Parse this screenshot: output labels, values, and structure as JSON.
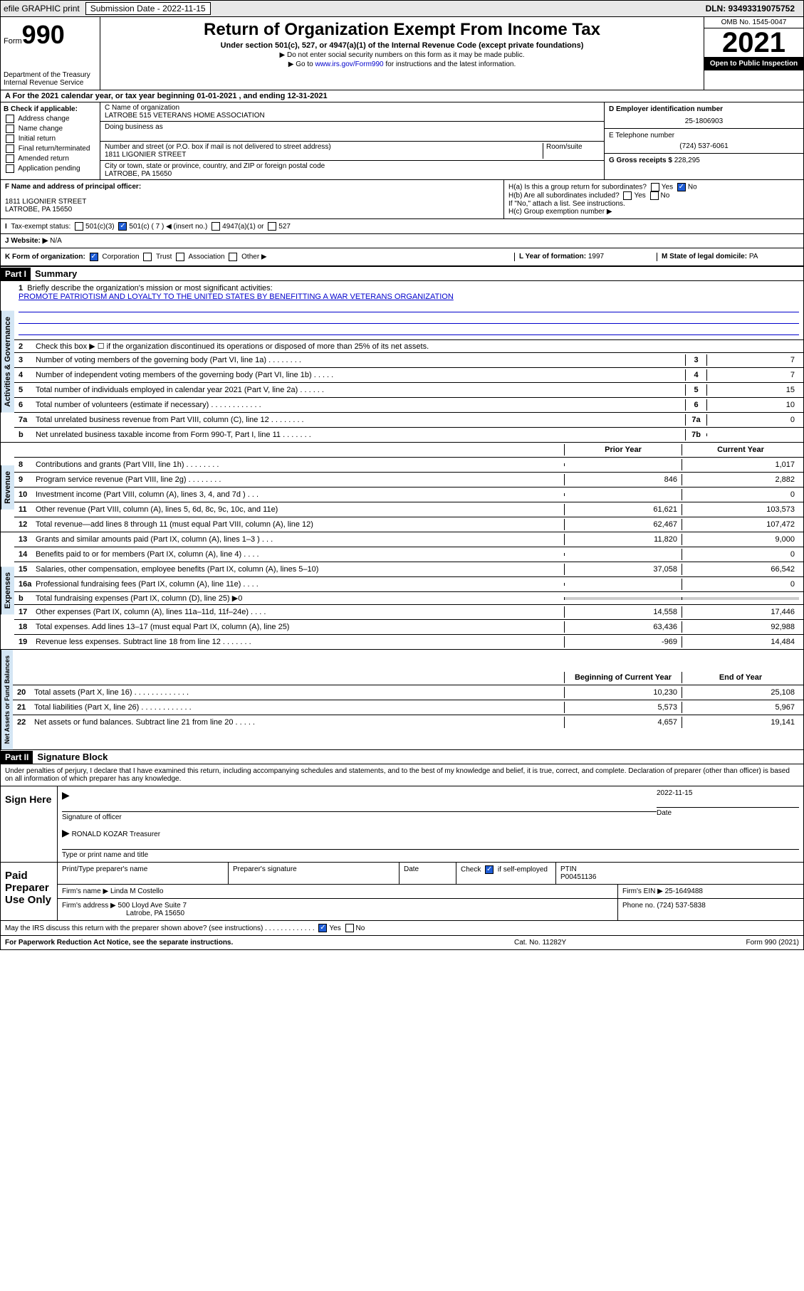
{
  "topbar": {
    "efile": "efile GRAPHIC print",
    "submission_label": "Submission Date - 2022-11-15",
    "dln": "DLN: 93493319075752"
  },
  "header": {
    "form_label": "Form",
    "form_number": "990",
    "title": "Return of Organization Exempt From Income Tax",
    "subtitle": "Under section 501(c), 527, or 4947(a)(1) of the Internal Revenue Code (except private foundations)",
    "note1": "▶ Do not enter social security numbers on this form as it may be made public.",
    "note2_pre": "▶ Go to ",
    "note2_link": "www.irs.gov/Form990",
    "note2_post": " for instructions and the latest information.",
    "dept": "Department of the Treasury",
    "irs": "Internal Revenue Service",
    "omb": "OMB No. 1545-0047",
    "year": "2021",
    "open_public": "Open to Public Inspection"
  },
  "period": {
    "text": "A For the 2021 calendar year, or tax year beginning 01-01-2021   , and ending 12-31-2021"
  },
  "check_labels": {
    "heading": "B Check if applicable:",
    "address": "Address change",
    "name": "Name change",
    "initial": "Initial return",
    "final": "Final return/terminated",
    "amended": "Amended return",
    "application": "Application pending"
  },
  "org": {
    "name_label": "C Name of organization",
    "name": "LATROBE 515 VETERANS HOME ASSOCIATION",
    "dba_label": "Doing business as",
    "street_label": "Number and street (or P.O. box if mail is not delivered to street address)",
    "room_label": "Room/suite",
    "street": "1811 LIGONIER STREET",
    "city_label": "City or town, state or province, country, and ZIP or foreign postal code",
    "city": "LATROBE, PA  15650"
  },
  "ein": {
    "label": "D Employer identification number",
    "value": "25-1806903"
  },
  "phone": {
    "label": "E Telephone number",
    "value": "(724) 537-6061"
  },
  "gross": {
    "label": "G Gross receipts $",
    "value": "228,295"
  },
  "officer": {
    "label": "F Name and address of principal officer:",
    "street": "1811 LIGONIER STREET",
    "city": "LATROBE, PA  15650"
  },
  "group": {
    "ha": "H(a)  Is this a group return for subordinates?",
    "hb": "H(b)  Are all subordinates included?",
    "ifno": "If \"No,\" attach a list. See instructions.",
    "hc": "H(c)  Group exemption number ▶",
    "yes": "Yes",
    "no": "No"
  },
  "status": {
    "label": "Tax-exempt status:",
    "c3": "501(c)(3)",
    "c": "501(c) ( 7 ) ◀ (insert no.)",
    "a1": "4947(a)(1) or",
    "s527": "527"
  },
  "website": {
    "label": "J   Website: ▶",
    "value": "N/A"
  },
  "form_org": {
    "label": "K Form of organization:",
    "corp": "Corporation",
    "trust": "Trust",
    "assoc": "Association",
    "other": "Other ▶",
    "year_label": "L Year of formation:",
    "year": "1997",
    "domicile_label": "M State of legal domicile:",
    "domicile": "PA"
  },
  "part1": {
    "header": "Part I",
    "title": "Summary",
    "line1_label": "Briefly describe the organization's mission or most significant activities:",
    "line1_text": "PROMOTE PATRIOTISM AND LOYALTY TO THE UNITED STATES BY BENEFITTING A WAR VETERANS ORGANIZATION",
    "line2": "Check this box ▶ ☐  if the organization discontinued its operations or disposed of more than 25% of its net assets.",
    "vert_gov": "Activities & Governance",
    "vert_rev": "Revenue",
    "vert_exp": "Expenses",
    "vert_net": "Net Assets or Fund Balances",
    "prior_year": "Prior Year",
    "current_year": "Current Year",
    "begin_year": "Beginning of Current Year",
    "end_year": "End of Year",
    "lines_gov": [
      {
        "num": "3",
        "text": "Number of voting members of the governing body (Part VI, line 1a)   .    .    .    .    .    .    .    .",
        "box": "3",
        "val": "7"
      },
      {
        "num": "4",
        "text": "Number of independent voting members of the governing body (Part VI, line 1b)  .    .    .    .    .",
        "box": "4",
        "val": "7"
      },
      {
        "num": "5",
        "text": "Total number of individuals employed in calendar year 2021 (Part V, line 2a)   .    .    .    .    .    .",
        "box": "5",
        "val": "15"
      },
      {
        "num": "6",
        "text": "Total number of volunteers (estimate if necessary)   .    .    .    .    .    .    .    .    .    .    .    .",
        "box": "6",
        "val": "10"
      },
      {
        "num": "7a",
        "text": "Total unrelated business revenue from Part VIII, column (C), line 12   .    .    .    .    .    .    .    .",
        "box": "7a",
        "val": "0"
      },
      {
        "num": "b",
        "text": "Net unrelated business taxable income from Form 990-T, Part I, line 11   .    .    .    .    .    .    .",
        "box": "7b",
        "val": ""
      }
    ],
    "lines_rev": [
      {
        "num": "8",
        "text": "Contributions and grants (Part VIII, line 1h)   .    .    .    .    .    .    .    .",
        "prior": "",
        "curr": "1,017"
      },
      {
        "num": "9",
        "text": "Program service revenue (Part VIII, line 2g)   .    .    .    .    .    .    .    .",
        "prior": "846",
        "curr": "2,882"
      },
      {
        "num": "10",
        "text": "Investment income (Part VIII, column (A), lines 3, 4, and 7d )   .    .    .",
        "prior": "",
        "curr": "0"
      },
      {
        "num": "11",
        "text": "Other revenue (Part VIII, column (A), lines 5, 6d, 8c, 9c, 10c, and 11e)",
        "prior": "61,621",
        "curr": "103,573"
      },
      {
        "num": "12",
        "text": "Total revenue—add lines 8 through 11 (must equal Part VIII, column (A), line 12)",
        "prior": "62,467",
        "curr": "107,472"
      }
    ],
    "lines_exp": [
      {
        "num": "13",
        "text": "Grants and similar amounts paid (Part IX, column (A), lines 1–3 )   .    .    .",
        "prior": "11,820",
        "curr": "9,000"
      },
      {
        "num": "14",
        "text": "Benefits paid to or for members (Part IX, column (A), line 4)   .    .    .    .",
        "prior": "",
        "curr": "0"
      },
      {
        "num": "15",
        "text": "Salaries, other compensation, employee benefits (Part IX, column (A), lines 5–10)",
        "prior": "37,058",
        "curr": "66,542"
      },
      {
        "num": "16a",
        "text": "Professional fundraising fees (Part IX, column (A), line 11e)   .    .    .    .",
        "prior": "",
        "curr": "0"
      },
      {
        "num": "b",
        "text": "Total fundraising expenses (Part IX, column (D), line 25) ▶0",
        "prior": "shaded",
        "curr": "shaded"
      },
      {
        "num": "17",
        "text": "Other expenses (Part IX, column (A), lines 11a–11d, 11f–24e)   .    .    .    .",
        "prior": "14,558",
        "curr": "17,446"
      },
      {
        "num": "18",
        "text": "Total expenses. Add lines 13–17 (must equal Part IX, column (A), line 25)",
        "prior": "63,436",
        "curr": "92,988"
      },
      {
        "num": "19",
        "text": "Revenue less expenses. Subtract line 18 from line 12  .    .    .    .    .    .    .",
        "prior": "-969",
        "curr": "14,484"
      }
    ],
    "lines_net": [
      {
        "num": "20",
        "text": "Total assets (Part X, line 16)   .    .    .    .    .    .    .    .    .    .    .    .    .",
        "prior": "10,230",
        "curr": "25,108"
      },
      {
        "num": "21",
        "text": "Total liabilities (Part X, line 26)   .    .    .    .    .    .    .    .    .    .    .    .",
        "prior": "5,573",
        "curr": "5,967"
      },
      {
        "num": "22",
        "text": "Net assets or fund balances. Subtract line 21 from line 20  .    .    .    .    .",
        "prior": "4,657",
        "curr": "19,141"
      }
    ]
  },
  "part2": {
    "header": "Part II",
    "title": "Signature Block",
    "declaration": "Under penalties of perjury, I declare that I have examined this return, including accompanying schedules and statements, and to the best of my knowledge and belief, it is true, correct, and complete. Declaration of preparer (other than officer) is based on all information of which preparer has any knowledge.",
    "sign_here": "Sign Here",
    "sig_officer": "Signature of officer",
    "date": "Date",
    "date_val": "2022-11-15",
    "officer_name": "RONALD KOZAR  Treasurer",
    "type_name": "Type or print name and title",
    "paid_prep": "Paid Preparer Use Only",
    "prep_name_label": "Print/Type preparer's name",
    "prep_sig_label": "Preparer's signature",
    "check_if": "Check",
    "self_emp": "if self-employed",
    "ptin_label": "PTIN",
    "ptin": "P00451136",
    "firm_name_label": "Firm's name    ▶",
    "firm_name": "Linda M Costello",
    "firm_ein_label": "Firm's EIN ▶",
    "firm_ein": "25-1649488",
    "firm_addr_label": "Firm's address ▶",
    "firm_addr": "500 Lloyd Ave Suite 7",
    "firm_city": "Latrobe, PA  15650",
    "phone_label": "Phone no.",
    "phone": "(724) 537-5838",
    "may_irs": "May the IRS discuss this return with the preparer shown above? (see instructions)   .    .    .    .    .    .    .    .    .    .    .    .    ."
  },
  "footer": {
    "paperwork": "For Paperwork Reduction Act Notice, see the separate instructions.",
    "cat": "Cat. No. 11282Y",
    "form": "Form 990 (2021)"
  }
}
